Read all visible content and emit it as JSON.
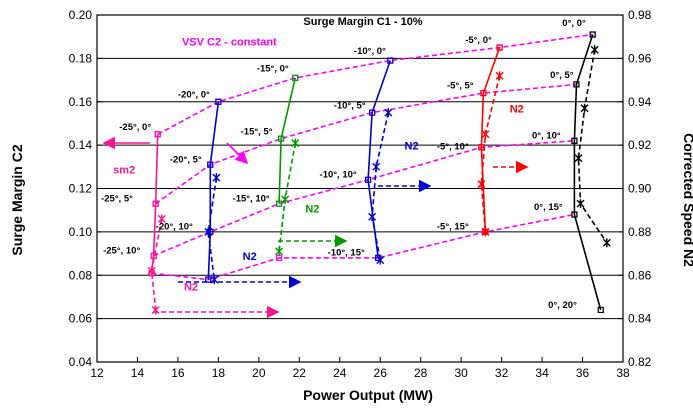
{
  "chart_data": {
    "type": "scatter",
    "title": "Surge Margin C1 - 10%",
    "xlabel": "Power Output (MW)",
    "ylabel": "Surge Margin C2",
    "y2label": "Corrected Speed N2",
    "xlim": [
      12,
      38
    ],
    "ylim": [
      0.04,
      0.2
    ],
    "y2lim": [
      0.82,
      0.98
    ],
    "x_ticks": [
      "12",
      "14",
      "16",
      "18",
      "20",
      "22",
      "24",
      "26",
      "28",
      "30",
      "32",
      "34",
      "36",
      "38"
    ],
    "y_ticks": [
      "0.04",
      "0.06",
      "0.08",
      "0.10",
      "0.12",
      "0.14",
      "0.16",
      "0.18",
      "0.20"
    ],
    "y2_ticks": [
      "0.82",
      "0.84",
      "0.86",
      "0.88",
      "0.90",
      "0.92",
      "0.94",
      "0.96",
      "0.98"
    ],
    "grid": "horizontal",
    "colors": {
      "magenta": "#ff00ff",
      "pink": "#ff1493",
      "blue": "#0000cc",
      "green": "#009900",
      "red": "#ff0000",
      "black": "#000000"
    },
    "series": [
      {
        "color": "#ff00ff",
        "style": "dashed",
        "axis": "left",
        "x": [
          14.8,
          17.6,
          21.0,
          25.4,
          31.0,
          35.6
        ],
        "y": [
          0.089,
          0.1,
          0.113,
          0.124,
          0.139,
          0.142
        ]
      },
      {
        "color": "#ff00ff",
        "style": "dashed",
        "axis": "left",
        "x": [
          14.9,
          17.6,
          21.1,
          25.6,
          31.1,
          35.7
        ],
        "y": [
          0.113,
          0.131,
          0.143,
          0.155,
          0.164,
          0.168
        ]
      },
      {
        "color": "#ff00ff",
        "style": "dashed",
        "axis": "left",
        "x": [
          15.0,
          18.0,
          21.8,
          26.5,
          31.9,
          36.5
        ],
        "y": [
          0.145,
          0.16,
          0.171,
          0.179,
          0.185,
          0.191
        ]
      },
      {
        "color": "#ff00ff",
        "style": "dashed",
        "axis": "left",
        "x": [
          14.7,
          17.5,
          21.0,
          25.9,
          31.2,
          35.6
        ],
        "y": [
          0.081,
          0.078,
          0.088,
          0.088,
          0.1,
          0.108
        ]
      },
      {
        "color": "#ff1493",
        "style": "solid",
        "axis": "left",
        "x": [
          15.0,
          14.9,
          14.8,
          14.7
        ],
        "y": [
          0.145,
          0.113,
          0.089,
          0.081
        ]
      },
      {
        "color": "#0000cc",
        "style": "solid",
        "axis": "left",
        "x": [
          18.0,
          17.6,
          17.6,
          17.5
        ],
        "y": [
          0.16,
          0.131,
          0.1,
          0.078
        ]
      },
      {
        "color": "#009900",
        "style": "solid",
        "axis": "left",
        "x": [
          21.8,
          21.1,
          21.0
        ],
        "y": [
          0.171,
          0.143,
          0.113
        ]
      },
      {
        "color": "#0000cc",
        "style": "solid",
        "axis": "left",
        "x": [
          26.5,
          25.6,
          25.4,
          25.9
        ],
        "y": [
          0.179,
          0.155,
          0.124,
          0.088
        ]
      },
      {
        "color": "#ff0000",
        "style": "solid",
        "axis": "left",
        "x": [
          31.9,
          31.1,
          31.0,
          31.2
        ],
        "y": [
          0.185,
          0.164,
          0.139,
          0.1
        ]
      },
      {
        "color": "#000000",
        "style": "solid",
        "axis": "left",
        "x": [
          36.5,
          35.7,
          35.6,
          35.6,
          36.9
        ],
        "y": [
          0.191,
          0.168,
          0.142,
          0.108,
          0.064
        ]
      },
      {
        "color": "#ff1493",
        "style": "dashed",
        "axis": "right",
        "x": [
          15.2,
          14.7,
          14.9
        ],
        "y": [
          0.886,
          0.862,
          0.844
        ]
      },
      {
        "color": "#0000cc",
        "style": "dashed",
        "axis": "right",
        "x": [
          17.9,
          17.5,
          17.8
        ],
        "y": [
          0.905,
          0.88,
          0.858
        ]
      },
      {
        "color": "#009900",
        "style": "dashed",
        "axis": "right",
        "x": [
          21.8,
          21.3,
          21.0
        ],
        "y": [
          0.921,
          0.895,
          0.871
        ]
      },
      {
        "color": "#0000cc",
        "style": "dashed",
        "axis": "right",
        "x": [
          26.4,
          25.8,
          25.6,
          26.0
        ],
        "y": [
          0.935,
          0.91,
          0.887,
          0.867
        ]
      },
      {
        "color": "#ff0000",
        "style": "dashed",
        "axis": "right",
        "x": [
          31.9,
          31.2,
          31.0,
          31.2
        ],
        "y": [
          0.952,
          0.925,
          0.902,
          0.88
        ]
      },
      {
        "color": "#000000",
        "style": "dashed",
        "axis": "right",
        "x": [
          36.6,
          36.1,
          35.8,
          35.9,
          37.2
        ],
        "y": [
          0.964,
          0.937,
          0.914,
          0.893,
          0.875
        ]
      }
    ],
    "point_labels": [
      {
        "text": "0°, 0°",
        "x": 35.0,
        "y": 0.195
      },
      {
        "text": "-5°, 0°",
        "x": 30.2,
        "y": 0.187
      },
      {
        "text": "-10°, 0°",
        "x": 24.7,
        "y": 0.182
      },
      {
        "text": "-15°, 0°",
        "x": 19.9,
        "y": 0.174
      },
      {
        "text": "-20°, 0°",
        "x": 16.0,
        "y": 0.162
      },
      {
        "text": "-25°, 0°",
        "x": 13.1,
        "y": 0.147
      },
      {
        "text": "0°, 5°",
        "x": 34.4,
        "y": 0.171
      },
      {
        "text": "-5°, 5°",
        "x": 29.3,
        "y": 0.166
      },
      {
        "text": "-10°, 5°",
        "x": 23.7,
        "y": 0.157
      },
      {
        "text": "-15°, 5°",
        "x": 19.1,
        "y": 0.145
      },
      {
        "text": "-20°, 5°",
        "x": 15.6,
        "y": 0.132
      },
      {
        "text": "-25°, 5°",
        "x": 12.2,
        "y": 0.114
      },
      {
        "text": "0°, 10°",
        "x": 33.5,
        "y": 0.143
      },
      {
        "text": "-5°, 10°",
        "x": 28.8,
        "y": 0.138
      },
      {
        "text": "-10°, 10°",
        "x": 23.0,
        "y": 0.125
      },
      {
        "text": "-15°, 10°",
        "x": 18.7,
        "y": 0.114
      },
      {
        "text": "-20°, 10°",
        "x": 14.9,
        "y": 0.101
      },
      {
        "text": "-25°, 10°",
        "x": 12.3,
        "y": 0.09
      },
      {
        "text": "0°, 15°",
        "x": 33.6,
        "y": 0.11
      },
      {
        "text": "-5°, 15°",
        "x": 28.8,
        "y": 0.101
      },
      {
        "text": "-10°, 15°",
        "x": 23.4,
        "y": 0.089
      },
      {
        "text": "0°, 20°",
        "x": 34.3,
        "y": 0.065
      }
    ],
    "annotations": [
      {
        "text": "VSV C2 - constant",
        "color": "#ff00ff",
        "x": 16.2,
        "y": 0.186
      },
      {
        "text": "sm2",
        "color": "#ff1493",
        "x": 12.8,
        "y": 0.127
      },
      {
        "text": "N2",
        "color": "#0000cc",
        "x": 27.2,
        "y": 0.138
      },
      {
        "text": "N2",
        "color": "#ff0000",
        "x": 32.4,
        "y": 0.155
      },
      {
        "text": "N2",
        "color": "#009900",
        "x": 22.3,
        "y": 0.109
      },
      {
        "text": "N2",
        "color": "#0000cc",
        "x": 19.2,
        "y": 0.087
      },
      {
        "text": "N2",
        "color": "#ff1493",
        "x": 16.3,
        "y": 0.073
      }
    ]
  }
}
